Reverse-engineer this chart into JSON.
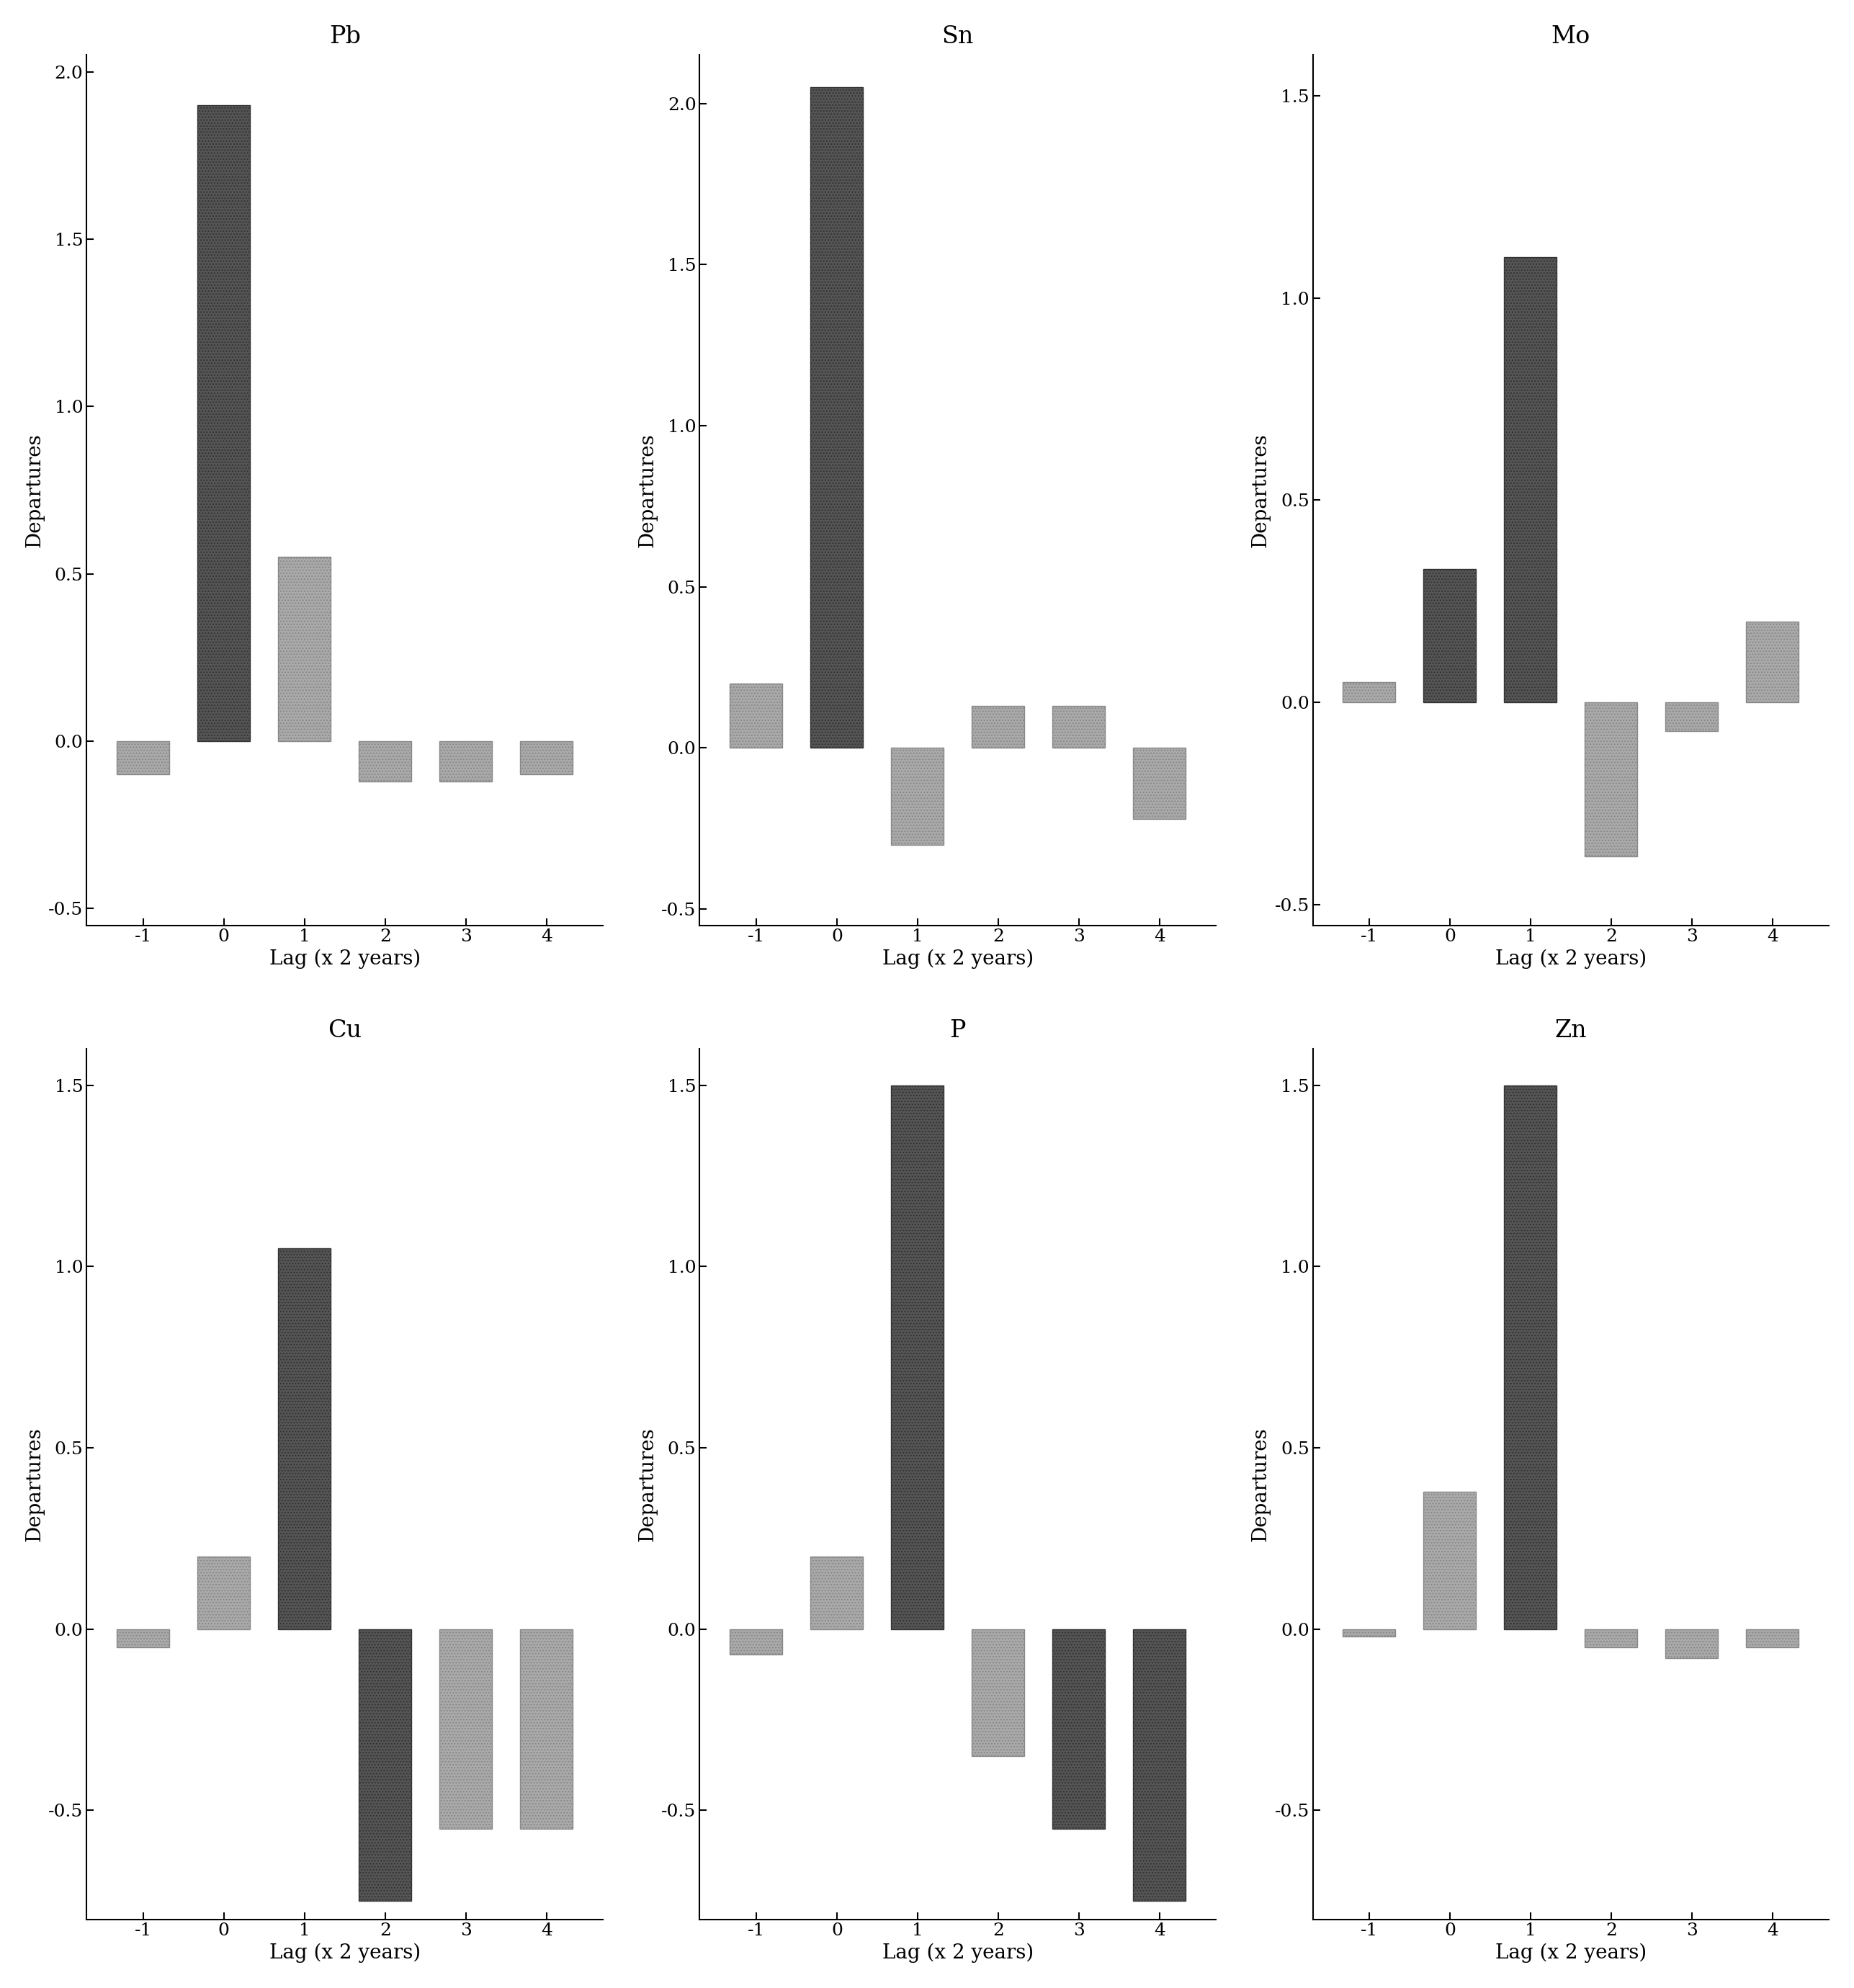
{
  "panels": [
    {
      "title": "Pb",
      "lags": [
        -1,
        0,
        1,
        2,
        3,
        4
      ],
      "values": [
        -0.1,
        1.9,
        0.55,
        -0.12,
        -0.12,
        -0.1
      ],
      "ylim": [
        -0.55,
        2.05
      ],
      "yticks": [
        -0.5,
        0.0,
        0.5,
        1.0,
        1.5,
        2.0
      ],
      "colors": [
        "light",
        "dark",
        "light",
        "light",
        "light",
        "light"
      ]
    },
    {
      "title": "Sn",
      "lags": [
        -1,
        0,
        1,
        2,
        3,
        4
      ],
      "values": [
        0.2,
        2.05,
        -0.3,
        0.13,
        0.13,
        -0.22
      ],
      "ylim": [
        -0.55,
        2.15
      ],
      "yticks": [
        -0.5,
        0.0,
        0.5,
        1.0,
        1.5,
        2.0
      ],
      "colors": [
        "light",
        "dark",
        "light",
        "light",
        "light",
        "light"
      ]
    },
    {
      "title": "Mo",
      "lags": [
        -1,
        0,
        1,
        2,
        3,
        4
      ],
      "values": [
        0.05,
        0.33,
        1.1,
        -0.38,
        -0.07,
        0.2
      ],
      "ylim": [
        -0.55,
        1.6
      ],
      "yticks": [
        -0.5,
        0.0,
        0.5,
        1.0,
        1.5
      ],
      "colors": [
        "light",
        "dark",
        "dark",
        "light",
        "light",
        "light"
      ]
    },
    {
      "title": "Cu",
      "lags": [
        -1,
        0,
        1,
        2,
        3,
        4
      ],
      "values": [
        -0.05,
        0.2,
        1.05,
        -0.75,
        -0.55,
        -0.55
      ],
      "ylim": [
        -0.8,
        1.6
      ],
      "yticks": [
        -0.5,
        0.0,
        0.5,
        1.0,
        1.5
      ],
      "colors": [
        "light",
        "light",
        "dark",
        "dark",
        "light",
        "light"
      ]
    },
    {
      "title": "P",
      "lags": [
        -1,
        0,
        1,
        2,
        3,
        4
      ],
      "values": [
        -0.07,
        0.2,
        1.5,
        -0.35,
        -0.55,
        -0.75
      ],
      "ylim": [
        -0.8,
        1.6
      ],
      "yticks": [
        -0.5,
        0.0,
        0.5,
        1.0,
        1.5
      ],
      "colors": [
        "light",
        "light",
        "dark",
        "light",
        "dark",
        "dark"
      ]
    },
    {
      "title": "Zn",
      "lags": [
        -1,
        0,
        1,
        2,
        3,
        4
      ],
      "values": [
        -0.02,
        0.38,
        1.5,
        -0.05,
        -0.08,
        -0.05
      ],
      "ylim": [
        -0.8,
        1.6
      ],
      "yticks": [
        -0.5,
        0.0,
        0.5,
        1.0,
        1.5
      ],
      "colors": [
        "light",
        "light",
        "dark",
        "light",
        "light",
        "light"
      ]
    }
  ],
  "dark_color": "#555555",
  "light_color": "#aaaaaa",
  "bar_width": 0.65,
  "xlabel": "Lag (x 2 years)",
  "ylabel": "Departures",
  "background_color": "#ffffff",
  "tick_fontsize": 18,
  "label_fontsize": 20,
  "title_fontsize": 24
}
